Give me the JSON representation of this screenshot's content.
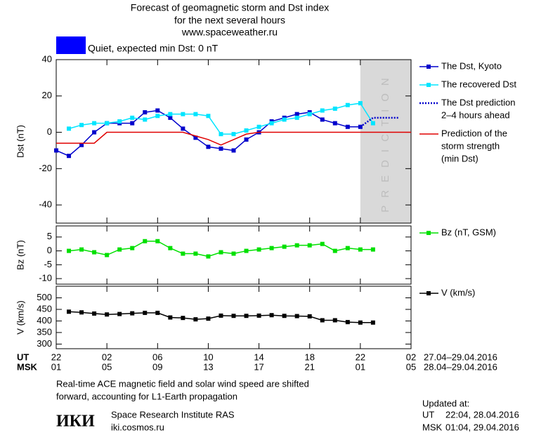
{
  "header": {
    "lines": [
      "Forecast of geomagnetic storm and Dst index",
      "for the next several hours",
      "www.spaceweather.ru"
    ]
  },
  "status": {
    "label": "Quiet, expected min Dst: 0 nT",
    "color": "#0000ff"
  },
  "chart_data": [
    {
      "type": "line",
      "ylabel": "Dst (nT)",
      "xlim": [
        0,
        28
      ],
      "ylim": [
        -50,
        40
      ],
      "yticks": [
        -40,
        -20,
        0,
        20,
        40
      ],
      "prediction": {
        "from": 24,
        "label": "PREDICTION"
      },
      "x": [
        0,
        1,
        2,
        3,
        4,
        5,
        6,
        7,
        8,
        9,
        10,
        11,
        12,
        13,
        14,
        15,
        16,
        17,
        18,
        19,
        20,
        21,
        22,
        23,
        24,
        25,
        26,
        27,
        28
      ],
      "series": [
        {
          "name": [
            "The Dst, Kyoto"
          ],
          "color": "#0000cc",
          "marker": "square",
          "values": [
            -10,
            -13,
            -7,
            0,
            5,
            5,
            5,
            11,
            12,
            8,
            2,
            -3,
            -8,
            -9,
            -10,
            -4,
            0,
            6,
            8,
            10,
            11,
            7,
            5,
            3,
            3,
            null,
            null,
            null,
            null
          ]
        },
        {
          "name": [
            "The recovered Dst"
          ],
          "color": "#00e5ff",
          "marker": "square",
          "values": [
            null,
            2,
            4,
            5,
            5,
            6,
            8,
            7,
            9,
            10,
            10,
            10,
            9,
            -1,
            -1,
            1,
            3,
            5,
            7,
            8,
            10,
            12,
            13,
            15,
            16,
            5,
            null,
            null,
            null
          ]
        },
        {
          "name": [
            "The Dst prediction",
            "2–4 hours ahead"
          ],
          "color": "#0000cc",
          "dash": "dotted",
          "values": [
            null,
            null,
            null,
            null,
            null,
            null,
            null,
            null,
            null,
            null,
            null,
            null,
            null,
            null,
            null,
            null,
            null,
            null,
            null,
            null,
            null,
            null,
            null,
            null,
            3,
            8,
            8,
            8,
            null
          ]
        },
        {
          "name": [
            "Prediction of the",
            "storm strength",
            "(min Dst)"
          ],
          "color": "#e00000",
          "values": [
            -6,
            -6,
            -6,
            -6,
            0,
            0,
            0,
            0,
            0,
            0,
            0,
            -2,
            -4,
            -7,
            -4,
            -1,
            0,
            0,
            0,
            0,
            0,
            0,
            0,
            0,
            0,
            0,
            0,
            0,
            0
          ]
        }
      ]
    },
    {
      "type": "line",
      "ylabel": "Bz (nT)",
      "xlim": [
        0,
        28
      ],
      "ylim": [
        -12,
        9
      ],
      "yticks": [
        -10,
        -5,
        0,
        5
      ],
      "x": [
        0,
        1,
        2,
        3,
        4,
        5,
        6,
        7,
        8,
        9,
        10,
        11,
        12,
        13,
        14,
        15,
        16,
        17,
        18,
        19,
        20,
        21,
        22,
        23,
        24,
        25,
        26,
        27,
        28
      ],
      "series": [
        {
          "name": [
            "Bz (nT, GSM)"
          ],
          "color": "#00e000",
          "marker": "square",
          "values": [
            null,
            0,
            0.5,
            -0.5,
            -1.5,
            0.5,
            1,
            3.5,
            3.5,
            1,
            -1,
            -1,
            -2,
            -0.5,
            -1,
            0,
            0.5,
            1,
            1.5,
            2,
            2,
            2.5,
            0,
            1,
            0.5,
            0.5,
            null,
            null,
            null
          ]
        }
      ]
    },
    {
      "type": "line",
      "ylabel": "V (km/s)",
      "xlim": [
        0,
        28
      ],
      "ylim": [
        280,
        550
      ],
      "yticks": [
        300,
        350,
        400,
        450,
        500
      ],
      "x": [
        0,
        1,
        2,
        3,
        4,
        5,
        6,
        7,
        8,
        9,
        10,
        11,
        12,
        13,
        14,
        15,
        16,
        17,
        18,
        19,
        20,
        21,
        22,
        23,
        24,
        25,
        26,
        27,
        28
      ],
      "xticks": [
        {
          "value": 0,
          "label": "22"
        },
        {
          "value": 4,
          "label": "02"
        },
        {
          "value": 8,
          "label": "06"
        },
        {
          "value": 12,
          "label": "10"
        },
        {
          "value": 16,
          "label": "14"
        },
        {
          "value": 20,
          "label": "18"
        },
        {
          "value": 24,
          "label": "22"
        },
        {
          "value": 28,
          "label": "02"
        }
      ],
      "xticks_msk": [
        "01",
        "05",
        "09",
        "13",
        "17",
        "21",
        "01",
        "05"
      ],
      "xlabel_ut": "UT",
      "xlabel_msk": "MSK",
      "date_ut": "27.04–29.04.2016",
      "date_msk": "28.04–29.04.2016",
      "series": [
        {
          "name": [
            "V (km/s)"
          ],
          "color": "#000000",
          "marker": "square",
          "values": [
            null,
            440,
            437,
            432,
            428,
            430,
            433,
            435,
            435,
            415,
            413,
            407,
            410,
            423,
            422,
            422,
            423,
            425,
            422,
            421,
            420,
            403,
            403,
            395,
            393,
            393,
            null,
            null,
            null
          ]
        }
      ]
    }
  ],
  "footer": {
    "note": [
      "Real-time ACE magnetic field and solar wind speed are shifted",
      "forward, accounting for L1-Earth propagation"
    ],
    "logo": "ИКИ",
    "institute": "Space Research Institute RAS",
    "site": "iki.cosmos.ru",
    "updated": "Updated at:",
    "ut_label": "UT",
    "ut_time": "22:04, 28.04.2016",
    "msk_label": "MSK",
    "msk_time": "01:04, 29.04.2016"
  }
}
